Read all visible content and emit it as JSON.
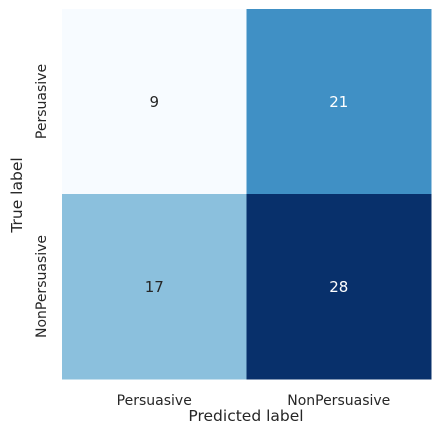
{
  "chart_data": {
    "type": "heatmap",
    "title": "",
    "xlabel": "Predicted label",
    "ylabel": "True label",
    "x_categories": [
      "Persuasive",
      "NonPersuasive"
    ],
    "y_categories": [
      "Persuasive",
      "NonPersuasive"
    ],
    "values": [
      [
        9,
        21
      ],
      [
        17,
        28
      ]
    ],
    "colormap": "Blues",
    "colorbar": false,
    "grid": false,
    "colors": {
      "low": "#f7fbff",
      "high": "#08306b",
      "text_on_light": "#262626",
      "text_on_dark": "#ffffff",
      "axis_text": "#262626"
    }
  }
}
